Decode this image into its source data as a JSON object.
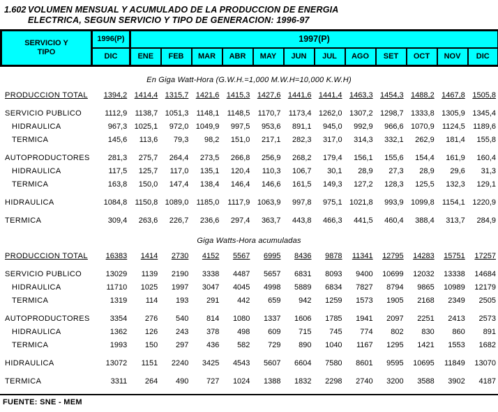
{
  "title": {
    "number": "1.602",
    "text": "VOLUMEN MENSUAL Y ACUMULADO DE LA PRODUCCION DE ENERGIA\nELECTRICA, SEGUN SERVICIO Y TIPO DE GENERACION: 1996-97"
  },
  "colors": {
    "header_bg": "#00ffff",
    "border": "#000000"
  },
  "header": {
    "col_label_line1": "SERVICIO Y",
    "col_label_line2": "TIPO",
    "year_prev": "1996(P)",
    "year_prev_sub": "DIC",
    "year_curr": "1997(P)",
    "months": [
      "ENE",
      "FEB",
      "MAR",
      "ABR",
      "MAY",
      "JUN",
      "JUL",
      "AGO",
      "SET",
      "OCT",
      "NOV",
      "DIC"
    ]
  },
  "sections": [
    {
      "subtitle": "En Giga Watt-Hora (G.W.H.=1,000 M.W.H=10,000 K.W.H)",
      "rows": [
        {
          "label": "PRODUCCION TOTAL",
          "indent": 0,
          "underlined": true,
          "gap_before": false,
          "values": [
            "1394,2",
            "1414,4",
            "1315,7",
            "1421,6",
            "1415,3",
            "1427,6",
            "1441,6",
            "1441,4",
            "1463,3",
            "1454,3",
            "1488,2",
            "1467,8",
            "1505,8"
          ]
        },
        {
          "label": "SERVICIO PUBLICO",
          "indent": 0,
          "underlined": false,
          "gap_before": true,
          "values": [
            "1112,9",
            "1138,7",
            "1051,3",
            "1148,1",
            "1148,5",
            "1170,7",
            "1173,4",
            "1262,0",
            "1307,2",
            "1298,7",
            "1333,8",
            "1305,9",
            "1345,4"
          ]
        },
        {
          "label": "HIDRAULICA",
          "indent": 1,
          "underlined": false,
          "gap_before": false,
          "values": [
            "967,3",
            "1025,1",
            "972,0",
            "1049,9",
            "997,5",
            "953,6",
            "891,1",
            "945,0",
            "992,9",
            "966,6",
            "1070,9",
            "1124,5",
            "1189,6"
          ]
        },
        {
          "label": "TERMICA",
          "indent": 1,
          "underlined": false,
          "gap_before": false,
          "values": [
            "145,6",
            "113,6",
            "79,3",
            "98,2",
            "151,0",
            "217,1",
            "282,3",
            "317,0",
            "314,3",
            "332,1",
            "262,9",
            "181,4",
            "155,8"
          ]
        },
        {
          "label": "AUTOPRODUCTORES",
          "indent": 0,
          "underlined": false,
          "gap_before": true,
          "values": [
            "281,3",
            "275,7",
            "264,4",
            "273,5",
            "266,8",
            "256,9",
            "268,2",
            "179,4",
            "156,1",
            "155,6",
            "154,4",
            "161,9",
            "160,4"
          ]
        },
        {
          "label": "HIDRAULICA",
          "indent": 1,
          "underlined": false,
          "gap_before": false,
          "values": [
            "117,5",
            "125,7",
            "117,0",
            "135,1",
            "120,4",
            "110,3",
            "106,7",
            "30,1",
            "28,9",
            "27,3",
            "28,9",
            "29,6",
            "31,3"
          ]
        },
        {
          "label": "TERMICA",
          "indent": 1,
          "underlined": false,
          "gap_before": false,
          "values": [
            "163,8",
            "150,0",
            "147,4",
            "138,4",
            "146,4",
            "146,6",
            "161,5",
            "149,3",
            "127,2",
            "128,3",
            "125,5",
            "132,3",
            "129,1"
          ]
        },
        {
          "label": "HIDRAULICA",
          "indent": 0,
          "underlined": false,
          "gap_before": true,
          "values": [
            "1084,8",
            "1150,8",
            "1089,0",
            "1185,0",
            "1117,9",
            "1063,9",
            "997,8",
            "975,1",
            "1021,8",
            "993,9",
            "1099,8",
            "1154,1",
            "1220,9"
          ]
        },
        {
          "label": "TERMICA",
          "indent": 0,
          "underlined": false,
          "gap_before": true,
          "values": [
            "309,4",
            "263,6",
            "226,7",
            "236,6",
            "297,4",
            "363,7",
            "443,8",
            "466,3",
            "441,5",
            "460,4",
            "388,4",
            "313,7",
            "284,9"
          ]
        }
      ]
    },
    {
      "subtitle": "Giga Watts-Hora acumuladas",
      "rows": [
        {
          "label": "PRODUCCION TOTAL",
          "indent": 0,
          "underlined": true,
          "gap_before": false,
          "values": [
            "16383",
            "1414",
            "2730",
            "4152",
            "5567",
            "6995",
            "8436",
            "9878",
            "11341",
            "12795",
            "14283",
            "15751",
            "17257"
          ]
        },
        {
          "label": "SERVICIO PUBLICO",
          "indent": 0,
          "underlined": false,
          "gap_before": true,
          "values": [
            "13029",
            "1139",
            "2190",
            "3338",
            "4487",
            "5657",
            "6831",
            "8093",
            "9400",
            "10699",
            "12032",
            "13338",
            "14684"
          ]
        },
        {
          "label": "HIDRAULICA",
          "indent": 1,
          "underlined": false,
          "gap_before": false,
          "values": [
            "11710",
            "1025",
            "1997",
            "3047",
            "4045",
            "4998",
            "5889",
            "6834",
            "7827",
            "8794",
            "9865",
            "10989",
            "12179"
          ]
        },
        {
          "label": "TERMICA",
          "indent": 1,
          "underlined": false,
          "gap_before": false,
          "values": [
            "1319",
            "114",
            "193",
            "291",
            "442",
            "659",
            "942",
            "1259",
            "1573",
            "1905",
            "2168",
            "2349",
            "2505"
          ]
        },
        {
          "label": "AUTOPRODUCTORES",
          "indent": 0,
          "underlined": false,
          "gap_before": true,
          "values": [
            "3354",
            "276",
            "540",
            "814",
            "1080",
            "1337",
            "1606",
            "1785",
            "1941",
            "2097",
            "2251",
            "2413",
            "2573"
          ]
        },
        {
          "label": "HIDRAULICA",
          "indent": 1,
          "underlined": false,
          "gap_before": false,
          "values": [
            "1362",
            "126",
            "243",
            "378",
            "498",
            "609",
            "715",
            "745",
            "774",
            "802",
            "830",
            "860",
            "891"
          ]
        },
        {
          "label": "TERMICA",
          "indent": 1,
          "underlined": false,
          "gap_before": false,
          "values": [
            "1993",
            "150",
            "297",
            "436",
            "582",
            "729",
            "890",
            "1040",
            "1167",
            "1295",
            "1421",
            "1553",
            "1682"
          ]
        },
        {
          "label": "HIDRAULICA",
          "indent": 0,
          "underlined": false,
          "gap_before": true,
          "values": [
            "13072",
            "1151",
            "2240",
            "3425",
            "4543",
            "5607",
            "6604",
            "7580",
            "8601",
            "9595",
            "10695",
            "11849",
            "13070"
          ]
        },
        {
          "label": "TERMICA",
          "indent": 0,
          "underlined": false,
          "gap_before": true,
          "values": [
            "3311",
            "264",
            "490",
            "727",
            "1024",
            "1388",
            "1832",
            "2298",
            "2740",
            "3200",
            "3588",
            "3902",
            "4187"
          ]
        }
      ]
    }
  ],
  "footer": {
    "source": "FUENTE: SNE - MEM"
  }
}
